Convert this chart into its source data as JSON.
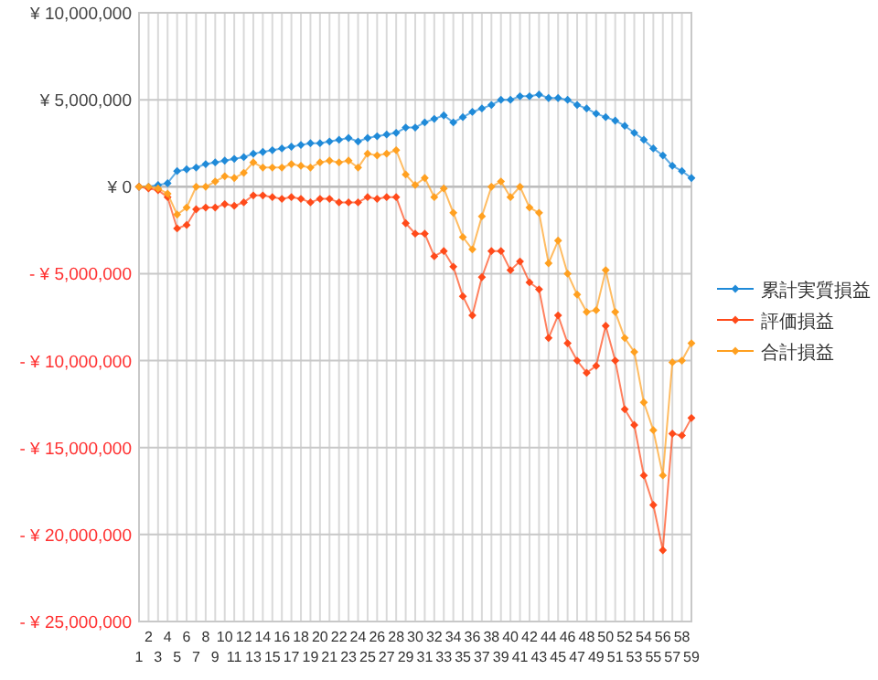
{
  "chart_data": {
    "type": "line",
    "categories": [
      "1",
      "2",
      "3",
      "4",
      "5",
      "6",
      "7",
      "8",
      "9",
      "10",
      "11",
      "12",
      "13",
      "14",
      "15",
      "16",
      "17",
      "18",
      "19",
      "20",
      "21",
      "22",
      "23",
      "24",
      "25",
      "26",
      "27",
      "28",
      "29",
      "30",
      "31",
      "32",
      "33",
      "34",
      "35",
      "36",
      "37",
      "38",
      "39",
      "40",
      "41",
      "42",
      "43",
      "44",
      "45",
      "46",
      "47",
      "48",
      "49",
      "50",
      "51",
      "52",
      "53",
      "54",
      "55",
      "56",
      "57",
      "58",
      "59"
    ],
    "ylim": [
      -25000000,
      10000000
    ],
    "yticks": [
      {
        "value": -25000000,
        "label": "- ¥ 25,000,000"
      },
      {
        "value": -20000000,
        "label": "- ¥ 20,000,000"
      },
      {
        "value": -15000000,
        "label": "- ¥ 15,000,000"
      },
      {
        "value": -10000000,
        "label": "- ¥ 10,000,000"
      },
      {
        "value": -5000000,
        "label": "- ¥ 5,000,000"
      },
      {
        "value": 0,
        "label": "¥ 0"
      },
      {
        "value": 5000000,
        "label": "¥ 5,000,000"
      },
      {
        "value": 10000000,
        "label": "¥ 10,000,000"
      }
    ],
    "grid": true,
    "legend": "right",
    "marker": "diamond",
    "line_style": "solid",
    "series": [
      {
        "name": "累計実質損益",
        "color": "#1f8ad8",
        "values": [
          0,
          0,
          100000,
          200000,
          900000,
          1000000,
          1100000,
          1300000,
          1400000,
          1500000,
          1600000,
          1700000,
          1900000,
          2000000,
          2100000,
          2200000,
          2300000,
          2400000,
          2500000,
          2500000,
          2600000,
          2700000,
          2800000,
          2600000,
          2800000,
          2900000,
          3000000,
          3100000,
          3400000,
          3400000,
          3700000,
          3900000,
          4100000,
          3700000,
          4000000,
          4300000,
          4500000,
          4700000,
          5000000,
          5000000,
          5200000,
          5200000,
          5300000,
          5100000,
          5100000,
          5000000,
          4700000,
          4500000,
          4200000,
          4000000,
          3800000,
          3500000,
          3100000,
          2700000,
          2200000,
          1800000,
          1200000,
          900000,
          500000
        ]
      },
      {
        "name": "評価損益",
        "color": "#ff4a1a",
        "values": [
          0,
          -100000,
          -200000,
          -600000,
          -2400000,
          -2200000,
          -1300000,
          -1200000,
          -1200000,
          -1000000,
          -1100000,
          -900000,
          -500000,
          -500000,
          -600000,
          -700000,
          -600000,
          -700000,
          -900000,
          -700000,
          -700000,
          -900000,
          -900000,
          -900000,
          -600000,
          -700000,
          -600000,
          -600000,
          -2100000,
          -2700000,
          -2700000,
          -4000000,
          -3700000,
          -4600000,
          -6300000,
          -7400000,
          -5200000,
          -3700000,
          -3700000,
          -4800000,
          -4300000,
          -5500000,
          -5900000,
          -8700000,
          -7400000,
          -9000000,
          -10000000,
          -10700000,
          -10300000,
          -8000000,
          -10000000,
          -12800000,
          -13700000,
          -16600000,
          -18300000,
          -20900000,
          -14200000,
          -14300000,
          -13300000
        ]
      },
      {
        "name": "合計損益",
        "color": "#ffa020",
        "values": [
          0,
          0,
          -100000,
          -400000,
          -1600000,
          -1200000,
          0,
          0,
          300000,
          600000,
          500000,
          800000,
          1400000,
          1100000,
          1100000,
          1100000,
          1300000,
          1200000,
          1100000,
          1400000,
          1500000,
          1400000,
          1500000,
          1100000,
          1900000,
          1800000,
          1900000,
          2100000,
          700000,
          100000,
          500000,
          -600000,
          -100000,
          -1500000,
          -2900000,
          -3600000,
          -1700000,
          0,
          300000,
          -600000,
          0,
          -1200000,
          -1500000,
          -4400000,
          -3100000,
          -5000000,
          -6200000,
          -7200000,
          -7100000,
          -4800000,
          -7200000,
          -8700000,
          -9500000,
          -12400000,
          -14000000,
          -16600000,
          -10100000,
          -10000000,
          -9000000
        ]
      }
    ]
  }
}
